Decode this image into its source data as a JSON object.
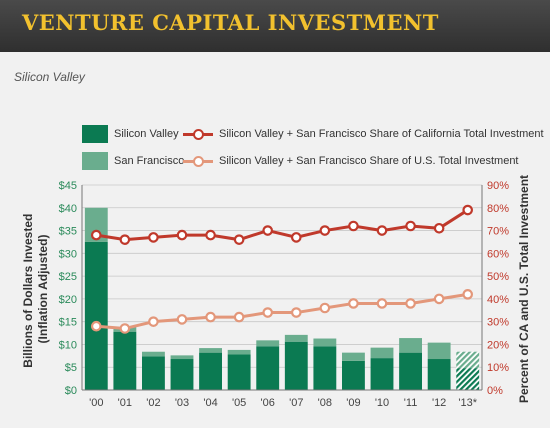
{
  "header": {
    "title": "VENTURE CAPITAL INVESTMENT"
  },
  "subtitle": "Silicon Valley",
  "colors": {
    "silicon_valley": "#0b7a52",
    "san_francisco": "#6aad8e",
    "ca_share_line": "#c0392b",
    "us_share_line": "#e3977a",
    "left_axis_text": "#2a8a5a",
    "right_axis_text": "#c0392b",
    "header_text": "#f2c12e"
  },
  "chart_data": {
    "type": "bar",
    "categories": [
      "'00",
      "'01",
      "'02",
      "'03",
      "'04",
      "'05",
      "'06",
      "'07",
      "'08",
      "'09",
      "'10",
      "'11",
      "'12",
      "'13*"
    ],
    "series": [
      {
        "name": "Silicon Valley",
        "type": "bar",
        "stack": "total",
        "axis": "left",
        "values": [
          32.5,
          12.8,
          7.4,
          6.8,
          8.2,
          7.8,
          9.6,
          10.6,
          9.6,
          6.4,
          7.0,
          8.2,
          6.8,
          4.8
        ]
      },
      {
        "name": "San Francisco",
        "type": "bar",
        "stack": "total",
        "axis": "left",
        "values": [
          7.5,
          1.0,
          1.0,
          0.8,
          1.0,
          1.0,
          1.3,
          1.5,
          1.7,
          1.8,
          2.3,
          3.2,
          3.6,
          3.6
        ]
      },
      {
        "name": "Silicon Valley + San Francisco Share of California Total Investment",
        "type": "line",
        "axis": "right",
        "values": [
          68,
          66,
          67,
          68,
          68,
          66,
          70,
          67,
          70,
          72,
          70,
          72,
          71,
          79
        ]
      },
      {
        "name": "Silicon Valley + San Francisco Share of U.S. Total Investment",
        "type": "line",
        "axis": "right",
        "values": [
          28,
          27,
          30,
          31,
          32,
          32,
          34,
          34,
          36,
          38,
          38,
          38,
          40,
          42
        ]
      }
    ],
    "estimated_bars": [
      "'13*"
    ],
    "ylabel": "Billions of Dollars Invested (Inflation Adjusted)",
    "ylabel_right": "Percent of CA and U.S. Total Investment",
    "ylim": [
      0,
      45
    ],
    "ylim_right": [
      0,
      90
    ],
    "yticks": [
      "$0",
      "$5",
      "$10",
      "$15",
      "$20",
      "$25",
      "$30",
      "$35",
      "$40",
      "$45"
    ],
    "yticks_right": [
      "0%",
      "10%",
      "20%",
      "30%",
      "40%",
      "50%",
      "60%",
      "70%",
      "80%",
      "90%"
    ],
    "grid": true,
    "legend_position": "top"
  }
}
